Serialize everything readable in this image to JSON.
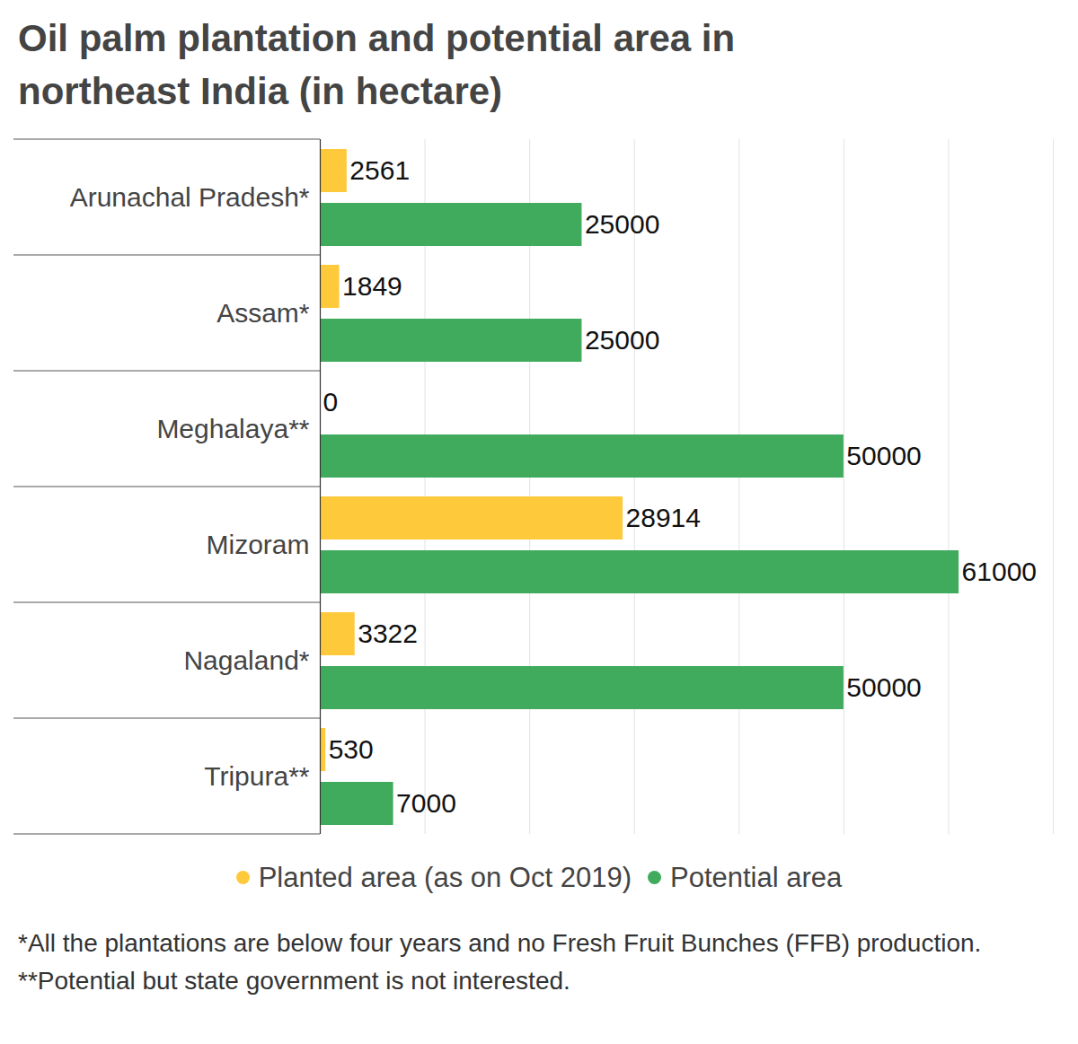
{
  "chart_data": {
    "type": "bar",
    "orientation": "horizontal",
    "title": "Oil palm plantation and potential area in northeast India (in hectare)",
    "categories": [
      "Arunachal Pradesh*",
      "Assam*",
      "Meghalaya**",
      "Mizoram",
      "Nagaland*",
      "Tripura**"
    ],
    "series": [
      {
        "name": "Planted area (as on Oct 2019)",
        "color": "#ffc93c",
        "values": [
          2561,
          1849,
          0,
          28914,
          3322,
          530
        ]
      },
      {
        "name": "Potential area",
        "color": "#41ab5d",
        "values": [
          25000,
          25000,
          50000,
          61000,
          50000,
          7000
        ]
      }
    ],
    "xlim": [
      0,
      70000
    ],
    "xticks": [
      0,
      10000,
      20000,
      30000,
      40000,
      50000,
      60000,
      70000
    ],
    "grid": true,
    "tick_labels": false,
    "data_labels": true,
    "legend": "bottom",
    "caption": "*All the plantations are below four years and no Fresh Fruit Bunches (FFB) production. **Potential but state government is not interested."
  }
}
